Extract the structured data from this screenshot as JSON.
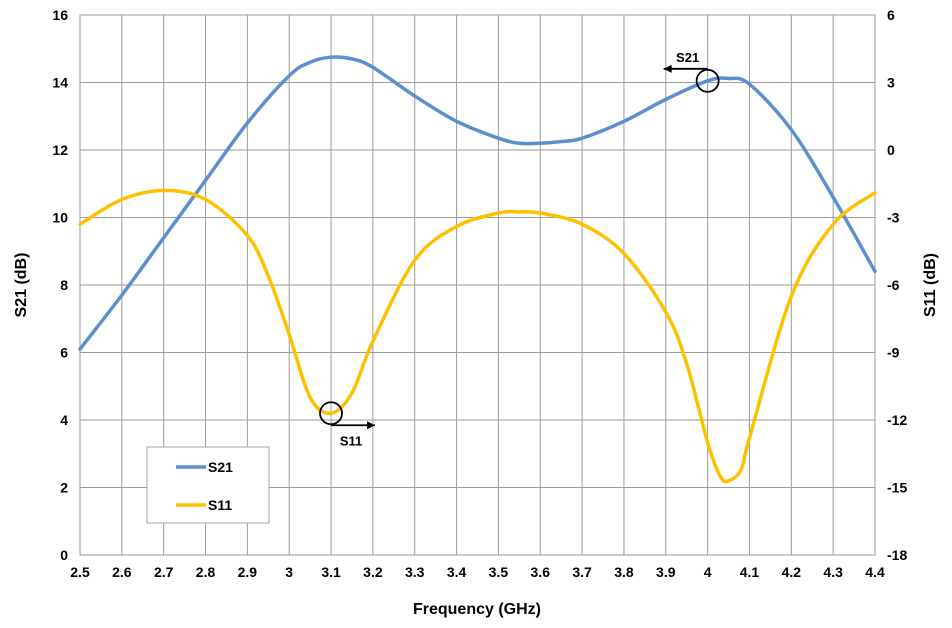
{
  "chart_data": {
    "type": "line",
    "xlabel": "Frequency (GHz)",
    "ylabel": "S21 (dB)",
    "y2label": "S11 (dB)",
    "xlim": [
      2.5,
      4.4
    ],
    "xticks": [
      2.5,
      2.6,
      2.7,
      2.8,
      2.9,
      3.0,
      3.1,
      3.2,
      3.3,
      3.4,
      3.5,
      3.6,
      3.7,
      3.8,
      3.9,
      4.0,
      4.1,
      4.2,
      4.3,
      4.4
    ],
    "xtick_labels": [
      "2.5",
      "2.6",
      "2.7",
      "2.8",
      "2.9",
      "3",
      "3.1",
      "3.2",
      "3.3",
      "3.4",
      "3.5",
      "3.6",
      "3.7",
      "3.8",
      "3.9",
      "4",
      "4.1",
      "4.2",
      "4.3",
      "4.4"
    ],
    "ylim": [
      0,
      16
    ],
    "yticks": [
      0,
      2,
      4,
      6,
      8,
      10,
      12,
      14,
      16
    ],
    "ytick_labels": [
      "0",
      "2",
      "4",
      "6",
      "8",
      "10",
      "12",
      "14",
      "16"
    ],
    "y2lim": [
      -18,
      6
    ],
    "y2ticks": [
      -18,
      -15,
      -12,
      -9,
      -6,
      -3,
      0,
      3,
      6
    ],
    "y2tick_labels": [
      "-18",
      "-15",
      "-12",
      "-9",
      "-6",
      "-3",
      "0",
      "3",
      "6"
    ],
    "grid": true,
    "legend": "lower-left",
    "series": [
      {
        "name": "S21",
        "axis": "left",
        "color": "#5B8FD0",
        "x": [
          2.5,
          2.6,
          2.7,
          2.8,
          2.9,
          3.0,
          3.05,
          3.1,
          3.15,
          3.2,
          3.3,
          3.4,
          3.5,
          3.55,
          3.6,
          3.65,
          3.7,
          3.8,
          3.9,
          4.0,
          4.05,
          4.1,
          4.2,
          4.3,
          4.4
        ],
        "values": [
          6.1,
          7.7,
          9.4,
          11.1,
          12.8,
          14.2,
          14.6,
          14.75,
          14.7,
          14.45,
          13.6,
          12.85,
          12.35,
          12.2,
          12.2,
          12.25,
          12.35,
          12.85,
          13.5,
          14.05,
          14.12,
          13.95,
          12.6,
          10.6,
          8.4
        ]
      },
      {
        "name": "S11",
        "axis": "right",
        "color": "#FFC000",
        "x": [
          2.5,
          2.6,
          2.7,
          2.8,
          2.9,
          2.95,
          3.0,
          3.05,
          3.1,
          3.15,
          3.2,
          3.3,
          3.4,
          3.5,
          3.55,
          3.6,
          3.7,
          3.8,
          3.9,
          3.95,
          4.0,
          4.03,
          4.05,
          4.08,
          4.1,
          4.2,
          4.3,
          4.4
        ],
        "values": [
          -3.3,
          -2.2,
          -1.8,
          -2.2,
          -3.8,
          -5.6,
          -8.2,
          -11.0,
          -11.7,
          -10.8,
          -8.5,
          -4.9,
          -3.4,
          -2.8,
          -2.75,
          -2.8,
          -3.3,
          -4.6,
          -7.2,
          -9.5,
          -13.0,
          -14.5,
          -14.7,
          -14.2,
          -12.8,
          -6.5,
          -3.3,
          -1.9
        ]
      }
    ],
    "annotations": [
      {
        "text": "S21",
        "x": 4.0,
        "y": 14.05,
        "axis": "left",
        "arrow": "left"
      },
      {
        "text": "S11",
        "x": 3.1,
        "y": -11.7,
        "axis": "right",
        "arrow": "right"
      }
    ]
  }
}
